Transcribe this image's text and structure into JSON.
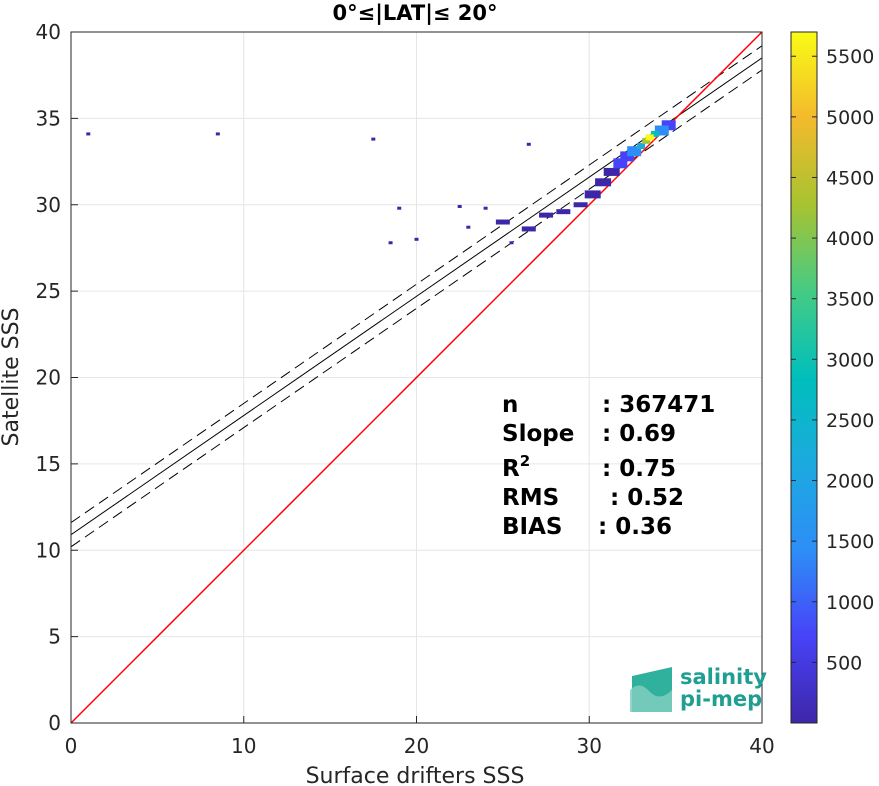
{
  "title": "0°≤|LAT|≤ 20°",
  "logo": {
    "line1": "salinity",
    "line2": "pi-mep"
  },
  "stats": [
    {
      "key": "n",
      "value": ": 367471"
    },
    {
      "key": "Slope",
      "value": ": 0.69"
    },
    {
      "key": "R",
      "sup": "2",
      "value": ": 0.75"
    },
    {
      "key": "RMS",
      "value": ": 0.52"
    },
    {
      "key": "BIAS",
      "value": ": 0.36"
    }
  ],
  "colors": {
    "identity_line": "#ff0000",
    "fit_line": "#000000",
    "colormap": [
      "#3e26a8",
      "#4743f8",
      "#2d8ef7",
      "#1caadf",
      "#00bfbc",
      "#45cb84",
      "#a7c331",
      "#f3ba2c",
      "#f9fb15"
    ]
  },
  "chart_data": {
    "type": "heatmap",
    "title": "0°≤|LAT|≤ 20°",
    "xlabel": "Surface drifters SSS",
    "ylabel": "Satellite SSS",
    "xlim": [
      0,
      40
    ],
    "ylim": [
      0,
      40
    ],
    "xticks": [
      0,
      10,
      20,
      30,
      40
    ],
    "yticks": [
      0,
      5,
      10,
      15,
      20,
      25,
      30,
      35,
      40
    ],
    "grid": true,
    "colorbar": {
      "min": 0,
      "max": 5700,
      "ticks": [
        500,
        1000,
        1500,
        2000,
        2500,
        3000,
        3500,
        4000,
        4500,
        5000,
        5500
      ]
    },
    "identity_line": {
      "slope": 1,
      "intercept": 0
    },
    "fit_line": {
      "slope": 0.69,
      "intercept": 10.9
    },
    "fit_bounds": {
      "upper_intercept": 11.6,
      "lower_intercept": 10.2
    },
    "density": [
      {
        "x": 33.5,
        "y": 33.9,
        "count": 5600
      },
      {
        "x": 33.3,
        "y": 33.7,
        "count": 4200
      },
      {
        "x": 33.8,
        "y": 34.1,
        "count": 3000
      },
      {
        "x": 33.0,
        "y": 33.4,
        "count": 2200
      },
      {
        "x": 34.2,
        "y": 34.3,
        "count": 1600
      },
      {
        "x": 32.6,
        "y": 33.1,
        "count": 1200
      },
      {
        "x": 34.6,
        "y": 34.6,
        "count": 900
      },
      {
        "x": 32.2,
        "y": 32.8,
        "count": 700
      },
      {
        "x": 31.8,
        "y": 32.4,
        "count": 450
      },
      {
        "x": 31.3,
        "y": 31.9,
        "count": 300
      },
      {
        "x": 30.8,
        "y": 31.3,
        "count": 200
      },
      {
        "x": 30.2,
        "y": 30.6,
        "count": 120
      },
      {
        "x": 29.5,
        "y": 30.0,
        "count": 80
      },
      {
        "x": 28.5,
        "y": 29.6,
        "count": 50
      },
      {
        "x": 27.5,
        "y": 29.4,
        "count": 40
      },
      {
        "x": 26.5,
        "y": 28.6,
        "count": 30
      },
      {
        "x": 25.0,
        "y": 29.0,
        "count": 20
      },
      {
        "x": 24.0,
        "y": 29.8,
        "count": 15
      },
      {
        "x": 22.5,
        "y": 29.9,
        "count": 10
      },
      {
        "x": 1.0,
        "y": 34.1,
        "count": 5
      },
      {
        "x": 8.5,
        "y": 34.1,
        "count": 5
      },
      {
        "x": 17.5,
        "y": 33.8,
        "count": 5
      },
      {
        "x": 26.5,
        "y": 33.5,
        "count": 5
      },
      {
        "x": 19.0,
        "y": 29.8,
        "count": 5
      },
      {
        "x": 18.5,
        "y": 27.8,
        "count": 5
      },
      {
        "x": 20.0,
        "y": 28.0,
        "count": 5
      },
      {
        "x": 23.0,
        "y": 28.7,
        "count": 5
      },
      {
        "x": 25.5,
        "y": 27.8,
        "count": 5
      }
    ]
  }
}
